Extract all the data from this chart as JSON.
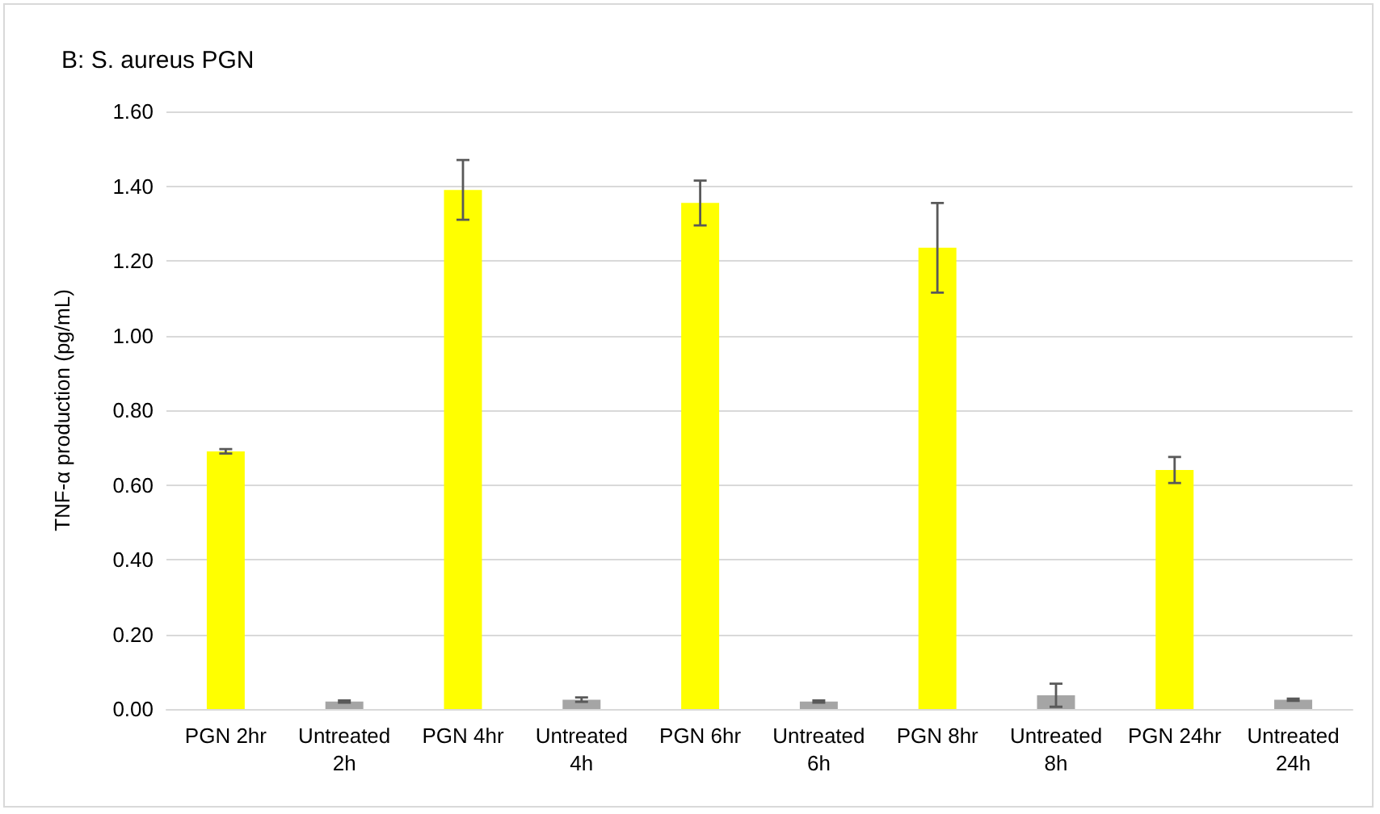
{
  "chart_data": {
    "type": "bar",
    "title": "B: S. aureus PGN",
    "ylabel": "TNF-α production (pg/mL)",
    "categories": [
      "PGN 2hr",
      "Untreated\n2h",
      "PGN 4hr",
      "Untreated\n4h",
      "PGN 6hr",
      "Untreated\n6h",
      "PGN 8hr",
      "Untreated\n8h",
      "PGN 24hr",
      "Untreated\n24h"
    ],
    "values": [
      0.69,
      0.02,
      1.39,
      0.025,
      1.355,
      0.02,
      1.235,
      0.037,
      0.64,
      0.025
    ],
    "errors": [
      0.006,
      0.003,
      0.08,
      0.006,
      0.06,
      0.003,
      0.12,
      0.031,
      0.035,
      0.003
    ],
    "colors": [
      "#ffff00",
      "#a5a5a5",
      "#ffff00",
      "#a5a5a5",
      "#ffff00",
      "#a5a5a5",
      "#ffff00",
      "#a5a5a5",
      "#ffff00",
      "#a5a5a5"
    ],
    "ylim": [
      0,
      1.6
    ],
    "yticks": [
      {
        "value": 0,
        "label": "0.00"
      },
      {
        "value": 0.2,
        "label": "0.20"
      },
      {
        "value": 0.4,
        "label": "0.40"
      },
      {
        "value": 0.6,
        "label": "0.60"
      },
      {
        "value": 0.8,
        "label": "0.80"
      },
      {
        "value": 1.0,
        "label": "1.00"
      },
      {
        "value": 1.2,
        "label": "1.20"
      },
      {
        "value": 1.4,
        "label": "1.40"
      },
      {
        "value": 1.6,
        "label": "1.60"
      }
    ],
    "grid": "y"
  }
}
